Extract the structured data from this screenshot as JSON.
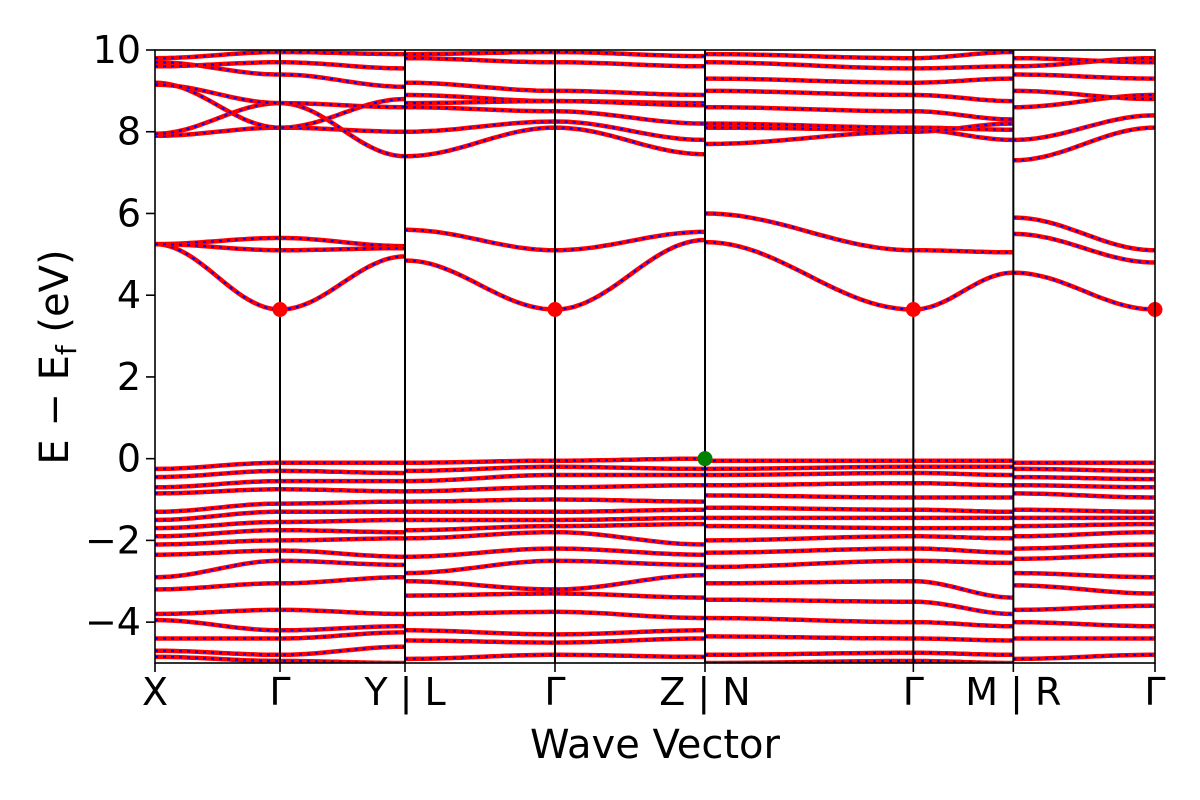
{
  "chart_data": {
    "type": "line",
    "xlabel": "Wave Vector",
    "ylabel_main": "E − E",
    "ylabel_sub": "f",
    "ylabel_unit": " (eV)",
    "ylim": [
      -5,
      10
    ],
    "yticks": [
      -4,
      -2,
      0,
      2,
      4,
      6,
      8,
      10
    ],
    "ytick_labels": [
      "−4",
      "−2",
      "0",
      "2",
      "4",
      "6",
      "8",
      "10"
    ],
    "grid": false,
    "legend": "none",
    "colors": {
      "band_solid": "#ff0000",
      "band_dash": "#0000ff",
      "cbm_marker": "#ff0000",
      "vbm_marker": "#008000",
      "frame": "#000000"
    },
    "xlim": [
      0,
      12
    ],
    "xticks": [
      {
        "x": 0.0,
        "label": "X"
      },
      {
        "x": 1.5,
        "label": "Γ"
      },
      {
        "x": 3.0,
        "label": "Y | L"
      },
      {
        "x": 4.8,
        "label": "Γ"
      },
      {
        "x": 6.6,
        "label": "Z | N"
      },
      {
        "x": 9.1,
        "label": "Γ"
      },
      {
        "x": 10.3,
        "label": "M | R"
      },
      {
        "x": 12.0,
        "label": "Γ"
      }
    ],
    "segments": [
      {
        "x": [
          0.0,
          1.5,
          3.0
        ],
        "bands": [
          [
            5.25,
            3.65,
            4.95
          ],
          [
            5.25,
            5.4,
            5.2
          ],
          [
            5.25,
            5.1,
            5.15
          ],
          [
            7.9,
            8.1,
            8.0
          ],
          [
            7.95,
            8.7,
            7.4
          ],
          [
            9.2,
            8.1,
            8.8
          ],
          [
            9.7,
            9.4,
            9.1
          ],
          [
            9.8,
            9.95,
            9.9
          ],
          [
            9.6,
            9.7,
            9.55
          ],
          [
            9.15,
            8.7,
            8.6
          ],
          [
            -0.25,
            -0.1,
            -0.1
          ],
          [
            -0.45,
            -0.3,
            -0.35
          ],
          [
            -0.7,
            -0.55,
            -0.55
          ],
          [
            -0.85,
            -0.75,
            -0.8
          ],
          [
            -1.3,
            -1.1,
            -1.05
          ],
          [
            -1.5,
            -1.3,
            -1.3
          ],
          [
            -1.7,
            -1.55,
            -1.5
          ],
          [
            -1.9,
            -1.75,
            -1.8
          ],
          [
            -2.1,
            -2.0,
            -1.95
          ],
          [
            -2.35,
            -2.25,
            -2.4
          ],
          [
            -2.9,
            -2.5,
            -2.6
          ],
          [
            -3.2,
            -3.05,
            -2.9
          ],
          [
            -3.8,
            -3.7,
            -3.8
          ],
          [
            -3.95,
            -4.2,
            -4.1
          ],
          [
            -4.4,
            -4.4,
            -4.25
          ],
          [
            -4.7,
            -4.8,
            -4.6
          ],
          [
            -4.85,
            -4.95,
            -5.0
          ]
        ]
      },
      {
        "x": [
          3.0,
          4.8,
          6.6
        ],
        "bands": [
          [
            4.85,
            3.65,
            5.35
          ],
          [
            5.6,
            5.1,
            5.55
          ],
          [
            7.4,
            8.1,
            7.45
          ],
          [
            8.0,
            8.25,
            7.8
          ],
          [
            8.6,
            8.5,
            8.2
          ],
          [
            8.9,
            8.75,
            8.7
          ],
          [
            9.2,
            9.0,
            8.9
          ],
          [
            9.8,
            9.7,
            9.6
          ],
          [
            9.9,
            9.95,
            9.85
          ],
          [
            8.7,
            8.75,
            8.65
          ],
          [
            -0.1,
            -0.05,
            0.0
          ],
          [
            -0.3,
            -0.2,
            -0.25
          ],
          [
            -0.55,
            -0.4,
            -0.4
          ],
          [
            -0.8,
            -0.7,
            -0.65
          ],
          [
            -1.05,
            -1.0,
            -1.05
          ],
          [
            -1.3,
            -1.3,
            -1.25
          ],
          [
            -1.5,
            -1.5,
            -1.45
          ],
          [
            -1.75,
            -1.65,
            -1.6
          ],
          [
            -1.95,
            -1.8,
            -2.1
          ],
          [
            -2.4,
            -2.2,
            -2.35
          ],
          [
            -2.8,
            -2.5,
            -2.6
          ],
          [
            -3.0,
            -3.2,
            -2.85
          ],
          [
            -3.35,
            -3.3,
            -3.4
          ],
          [
            -3.8,
            -3.75,
            -3.9
          ],
          [
            -4.2,
            -4.3,
            -4.2
          ],
          [
            -4.45,
            -4.5,
            -4.4
          ],
          [
            -4.9,
            -4.8,
            -4.85
          ]
        ]
      },
      {
        "x": [
          6.6,
          9.1,
          10.3
        ],
        "bands": [
          [
            5.3,
            3.65,
            4.55
          ],
          [
            6.0,
            5.1,
            5.05
          ],
          [
            8.1,
            8.05,
            7.8
          ],
          [
            8.2,
            8.1,
            8.05
          ],
          [
            8.6,
            8.5,
            8.3
          ],
          [
            9.0,
            8.9,
            8.75
          ],
          [
            9.3,
            9.2,
            9.3
          ],
          [
            9.7,
            9.55,
            9.6
          ],
          [
            9.9,
            9.8,
            9.95
          ],
          [
            7.7,
            8.0,
            8.2
          ],
          [
            -0.05,
            -0.05,
            -0.05
          ],
          [
            -0.25,
            -0.2,
            -0.2
          ],
          [
            -0.4,
            -0.35,
            -0.4
          ],
          [
            -0.65,
            -0.6,
            -0.65
          ],
          [
            -0.9,
            -0.95,
            -0.95
          ],
          [
            -1.2,
            -1.25,
            -1.3
          ],
          [
            -1.45,
            -1.45,
            -1.45
          ],
          [
            -1.65,
            -1.7,
            -1.7
          ],
          [
            -2.0,
            -1.9,
            -1.95
          ],
          [
            -2.3,
            -2.2,
            -2.3
          ],
          [
            -2.65,
            -2.5,
            -2.55
          ],
          [
            -3.05,
            -3.0,
            -3.4
          ],
          [
            -3.45,
            -3.5,
            -3.8
          ],
          [
            -3.9,
            -4.0,
            -4.1
          ],
          [
            -4.35,
            -4.4,
            -4.45
          ],
          [
            -4.8,
            -4.75,
            -4.8
          ],
          [
            -5.0,
            -4.95,
            -5.0
          ]
        ]
      },
      {
        "x": [
          10.3,
          12.0
        ],
        "bands": [
          [
            4.55,
            3.65
          ],
          [
            5.9,
            5.1
          ],
          [
            5.5,
            4.8
          ],
          [
            7.3,
            8.1
          ],
          [
            7.8,
            8.4
          ],
          [
            8.6,
            8.9
          ],
          [
            9.0,
            8.8
          ],
          [
            9.4,
            9.3
          ],
          [
            9.6,
            9.8
          ],
          [
            9.8,
            9.7
          ],
          [
            -0.1,
            -0.1
          ],
          [
            -0.25,
            -0.3
          ],
          [
            -0.45,
            -0.5
          ],
          [
            -0.65,
            -0.7
          ],
          [
            -0.85,
            -0.95
          ],
          [
            -1.25,
            -1.3
          ],
          [
            -1.45,
            -1.45
          ],
          [
            -1.65,
            -1.6
          ],
          [
            -1.9,
            -1.8
          ],
          [
            -2.2,
            -2.1
          ],
          [
            -2.45,
            -2.35
          ],
          [
            -2.8,
            -2.9
          ],
          [
            -3.1,
            -3.3
          ],
          [
            -3.7,
            -3.6
          ],
          [
            -4.0,
            -4.1
          ],
          [
            -4.4,
            -4.4
          ],
          [
            -4.9,
            -4.8
          ]
        ]
      }
    ],
    "markers": [
      {
        "x": 1.5,
        "y": 3.65,
        "kind": "cbm"
      },
      {
        "x": 4.8,
        "y": 3.65,
        "kind": "cbm"
      },
      {
        "x": 9.1,
        "y": 3.65,
        "kind": "cbm"
      },
      {
        "x": 12.0,
        "y": 3.65,
        "kind": "cbm"
      },
      {
        "x": 6.6,
        "y": 0.0,
        "kind": "vbm"
      }
    ]
  }
}
